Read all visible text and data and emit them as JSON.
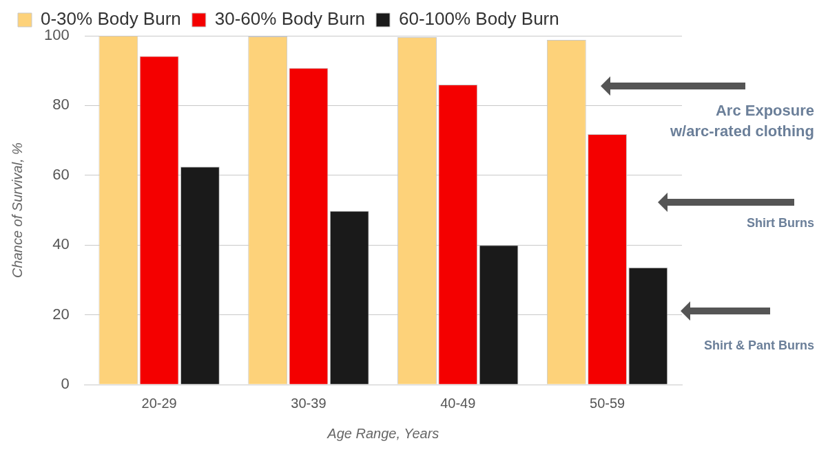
{
  "chart_data": {
    "type": "bar",
    "xlabel": "Age Range, Years",
    "ylabel": "Chance of Survival, %",
    "categories": [
      "20-29",
      "30-39",
      "40-49",
      "50-59"
    ],
    "series": [
      {
        "name": "0-30% Body Burn",
        "color": "#fdd27a",
        "values": [
          100,
          99.8,
          99.6,
          98.8
        ]
      },
      {
        "name": "30-60% Body Burn",
        "color": "#f40000",
        "values": [
          94.2,
          90.8,
          86,
          71.8
        ]
      },
      {
        "name": "60-100% Body Burn",
        "color": "#1a1a1a",
        "values": [
          62.5,
          49.8,
          40,
          33.6
        ]
      }
    ],
    "ylim": [
      0,
      100
    ],
    "yticks": [
      0,
      20,
      40,
      60,
      80,
      100
    ],
    "grid": "y",
    "legend": "top left",
    "annotations": [
      "Arc Exposure\nw/arc-rated clothing",
      "Shirt Burns",
      "Shirt & Pant Burns"
    ]
  }
}
